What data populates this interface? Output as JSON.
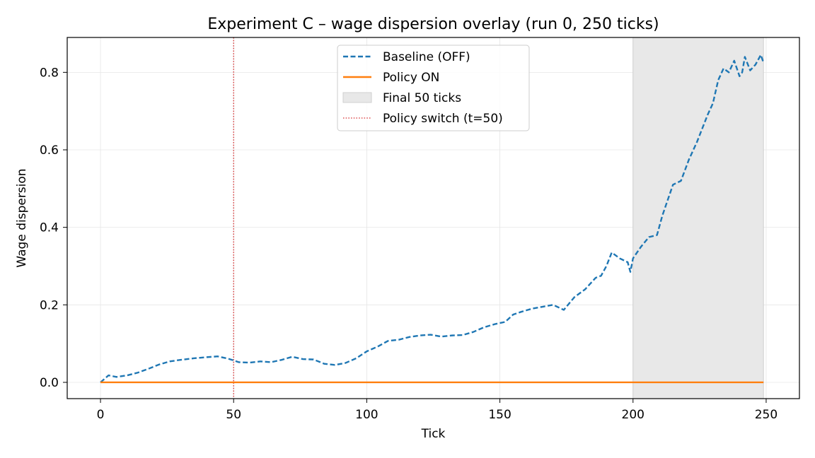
{
  "chart_data": {
    "type": "line",
    "title": "Experiment C – wage dispersion overlay (run 0, 250 ticks)",
    "xlabel": "Tick",
    "ylabel": "Wage dispersion",
    "xlim": [
      -12.5,
      262.5
    ],
    "ylim": [
      -0.042,
      0.89
    ],
    "xticks": [
      0,
      50,
      100,
      150,
      200,
      250
    ],
    "xtick_labels": [
      "0",
      "50",
      "100",
      "150",
      "200",
      "250"
    ],
    "yticks": [
      0.0,
      0.2,
      0.4,
      0.6,
      0.8
    ],
    "ytick_labels": [
      "0.0",
      "0.2",
      "0.4",
      "0.6",
      "0.8"
    ],
    "grid": true,
    "legend_position": "upper-center",
    "shaded_region": {
      "label": "Final 50 ticks",
      "x_start": 200,
      "x_end": 249,
      "color": "#e8e8e8"
    },
    "vline": {
      "label": "Policy switch (t=50)",
      "x": 50,
      "color": "#d62728",
      "style": "dotted"
    },
    "series": [
      {
        "name": "Baseline (OFF)",
        "color": "#1f77b4",
        "style": "dashed",
        "x": [
          0,
          3,
          6,
          10,
          14,
          18,
          22,
          26,
          30,
          35,
          40,
          44,
          48,
          52,
          56,
          60,
          64,
          68,
          72,
          76,
          80,
          84,
          88,
          92,
          96,
          100,
          104,
          108,
          112,
          116,
          120,
          124,
          128,
          132,
          136,
          140,
          144,
          148,
          152,
          155,
          158,
          162,
          166,
          170,
          174,
          178,
          182,
          186,
          188,
          190,
          192,
          195,
          198,
          199,
          200,
          203,
          206,
          209,
          211,
          213,
          215,
          218,
          221,
          224,
          226,
          228,
          230,
          232,
          234,
          236,
          238,
          240,
          241,
          242,
          244,
          246,
          248,
          249
        ],
        "y": [
          0.0,
          0.018,
          0.014,
          0.018,
          0.025,
          0.035,
          0.046,
          0.054,
          0.058,
          0.062,
          0.065,
          0.067,
          0.061,
          0.052,
          0.051,
          0.054,
          0.052,
          0.058,
          0.066,
          0.06,
          0.059,
          0.048,
          0.045,
          0.05,
          0.062,
          0.08,
          0.092,
          0.107,
          0.11,
          0.117,
          0.121,
          0.123,
          0.118,
          0.121,
          0.122,
          0.13,
          0.142,
          0.15,
          0.156,
          0.175,
          0.182,
          0.19,
          0.195,
          0.2,
          0.187,
          0.22,
          0.24,
          0.27,
          0.275,
          0.3,
          0.335,
          0.32,
          0.31,
          0.285,
          0.32,
          0.35,
          0.375,
          0.38,
          0.43,
          0.47,
          0.51,
          0.52,
          0.575,
          0.62,
          0.655,
          0.69,
          0.72,
          0.78,
          0.81,
          0.8,
          0.83,
          0.79,
          0.8,
          0.84,
          0.805,
          0.82,
          0.845,
          0.825
        ]
      },
      {
        "name": "Policy ON",
        "color": "#ff7f0e",
        "style": "solid",
        "x": [
          0,
          249
        ],
        "y": [
          0.0,
          0.0
        ]
      }
    ]
  }
}
